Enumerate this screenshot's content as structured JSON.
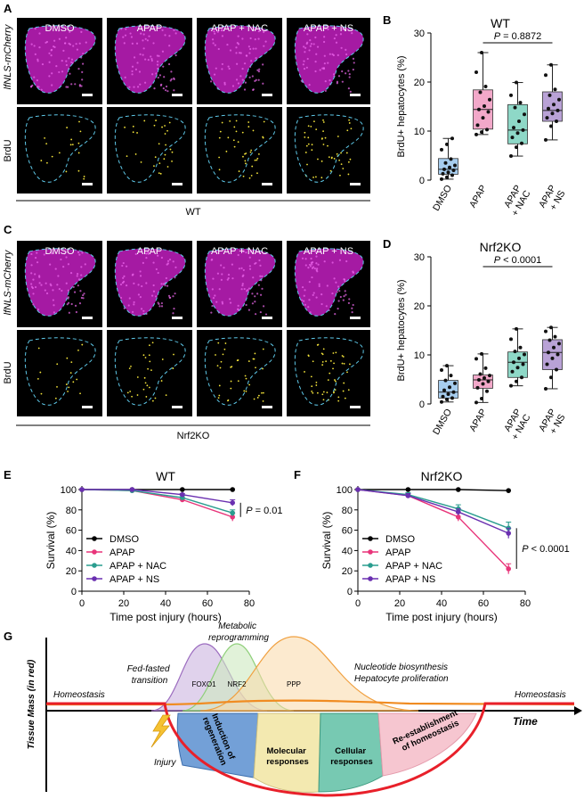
{
  "panels": {
    "A": {
      "letter": "A",
      "conditions": [
        "DMSO",
        "APAP",
        "APAP + NAC",
        "APAP + NS"
      ],
      "row1_label": "lfNLS-mCherry",
      "row2_label": "BrdU",
      "group_label": "WT"
    },
    "C": {
      "letter": "C",
      "conditions": [
        "DMSO",
        "APAP",
        "APAP + NAC",
        "APAP + NS"
      ],
      "row1_label": "lfNLS-mCherry",
      "row2_label": "BrdU",
      "group_label": "Nrf2KO"
    },
    "G": {
      "letter": "G",
      "y_label": "Tissue Mass (in red)",
      "x_label": "Time",
      "labels": {
        "homeostasis_left": "Homeostasis",
        "homeostasis_right": "Homeostasis",
        "injury": "Injury",
        "fed_fasted": [
          "Fed-fasted",
          "transition"
        ],
        "metabolic": [
          "Metabolic",
          "reprogramming"
        ],
        "nucleotide": [
          "Nucleotide biosynthesis",
          "Hepatocyte proliferation"
        ],
        "foxo1": "FOXO1",
        "nrf2": "NRF2",
        "ppp": "PPP",
        "induction": [
          "Induction of",
          "regeneration"
        ],
        "molecular": [
          "Molecular",
          "responses"
        ],
        "cellular": [
          "Cellular",
          "responses"
        ],
        "reestablish": [
          "Re-establishment",
          "of homeostasis"
        ]
      },
      "colors": {
        "foxo1": "#9b6bbf",
        "nrf2": "#8fcf7a",
        "ppp": "#f0a040",
        "induction": "#5b8fd0",
        "molecular": "#f3e9b0",
        "cellular": "#5fc0a4",
        "reestablish": "#f6c6d0",
        "mass": "#e8202a",
        "orange": "#f08c22"
      }
    }
  },
  "chart_data": [
    {
      "panel": "B",
      "type": "box",
      "title": "WT",
      "ylabel": "BrdU+ hepatocytes (%)",
      "ylim": [
        0,
        30
      ],
      "yticks": [
        0,
        10,
        20,
        30
      ],
      "categories": [
        "DMSO",
        "APAP",
        "APAP + NAC",
        "APAP + NS"
      ],
      "colors": [
        "#a7cdee",
        "#f2a8c9",
        "#8ed8c7",
        "#b9a2d6"
      ],
      "boxes": [
        {
          "min": 0.2,
          "q1": 1.2,
          "median": 2.2,
          "q3": 4.4,
          "max": 8.5
        },
        {
          "min": 9.3,
          "q1": 10.4,
          "median": 14.4,
          "q3": 18.4,
          "max": 26.0
        },
        {
          "min": 4.9,
          "q1": 7.4,
          "median": 10.2,
          "q3": 15.4,
          "max": 19.9
        },
        {
          "min": 8.2,
          "q1": 12.0,
          "median": 14.2,
          "q3": 18.0,
          "max": 23.5
        }
      ],
      "points": [
        [
          0.2,
          0.6,
          1.0,
          1.3,
          1.6,
          2.0,
          2.2,
          2.6,
          3.0,
          3.5,
          4.3,
          6.2,
          7.3,
          8.5
        ],
        [
          9.3,
          9.8,
          10.3,
          11.2,
          12.7,
          13.9,
          14.4,
          15.1,
          16.4,
          17.9,
          19.1,
          22.0,
          26.0
        ],
        [
          4.9,
          6.7,
          7.5,
          8.7,
          9.6,
          10.2,
          10.7,
          12.0,
          13.4,
          14.8,
          15.8,
          17.3,
          19.9
        ],
        [
          8.2,
          11.0,
          12.0,
          12.7,
          13.6,
          14.2,
          14.6,
          15.4,
          16.4,
          17.3,
          18.5,
          21.4,
          23.5
        ]
      ],
      "annotation": {
        "text": "P = 0.8872",
        "from": 1,
        "to": 3
      }
    },
    {
      "panel": "D",
      "type": "box",
      "title": "Nrf2KO",
      "ylabel": "BrdU+ hepatocytes (%)",
      "ylim": [
        0,
        30
      ],
      "yticks": [
        0,
        10,
        20,
        30
      ],
      "categories": [
        "DMSO",
        "APAP",
        "APAP + NAC",
        "APAP + NS"
      ],
      "colors": [
        "#a7cdee",
        "#f2a8c9",
        "#8ed8c7",
        "#b9a2d6"
      ],
      "boxes": [
        {
          "min": 0.4,
          "q1": 1.2,
          "median": 2.4,
          "q3": 4.8,
          "max": 7.8
        },
        {
          "min": 0.3,
          "q1": 3.2,
          "median": 4.9,
          "q3": 5.9,
          "max": 10.2
        },
        {
          "min": 3.7,
          "q1": 5.4,
          "median": 8.5,
          "q3": 10.6,
          "max": 15.3
        },
        {
          "min": 3.1,
          "q1": 7.0,
          "median": 10.5,
          "q3": 13.1,
          "max": 15.6
        }
      ],
      "points": [
        [
          0.4,
          0.9,
          1.2,
          1.5,
          2.0,
          2.4,
          2.8,
          3.4,
          4.2,
          4.8,
          5.8,
          6.9,
          7.8
        ],
        [
          0.3,
          1.1,
          2.6,
          3.3,
          4.1,
          4.6,
          4.9,
          5.3,
          5.8,
          6.1,
          7.3,
          9.2,
          10.2
        ],
        [
          3.7,
          4.6,
          5.4,
          6.6,
          7.4,
          8.1,
          8.5,
          9.3,
          10.1,
          10.7,
          11.5,
          13.2,
          15.3
        ],
        [
          3.1,
          5.4,
          7.0,
          8.1,
          9.3,
          10.1,
          10.5,
          11.5,
          12.3,
          13.0,
          13.7,
          14.8,
          15.6
        ]
      ],
      "annotation": {
        "text": "P < 0.0001",
        "from": 1,
        "to": 3
      }
    },
    {
      "panel": "E",
      "type": "line",
      "title": "WT",
      "xlabel": "Time post injury (hours)",
      "ylabel": "Survival (%)",
      "xlim": [
        0,
        80
      ],
      "ylim": [
        0,
        100
      ],
      "xticks": [
        0,
        20,
        40,
        60,
        80
      ],
      "yticks": [
        0,
        20,
        40,
        60,
        80,
        100
      ],
      "x": [
        0,
        24,
        48,
        72
      ],
      "series": [
        {
          "name": "DMSO",
          "color": "#000000",
          "values": [
            100,
            100,
            100,
            100
          ],
          "err": [
            0,
            0,
            0,
            0
          ]
        },
        {
          "name": "APAP",
          "color": "#e8357a",
          "values": [
            100,
            99,
            90,
            73
          ],
          "err": [
            0,
            1,
            2,
            4
          ]
        },
        {
          "name": "APAP + NAC",
          "color": "#2a9d8f",
          "values": [
            100,
            99,
            92,
            77
          ],
          "err": [
            0,
            1,
            2,
            3
          ]
        },
        {
          "name": "APAP + NS",
          "color": "#6a2fb0",
          "values": [
            100,
            100,
            95,
            87
          ],
          "err": [
            0,
            0,
            1,
            3
          ]
        }
      ],
      "annotation": {
        "text": "P = 0.01",
        "y_from": 73,
        "y_to": 87
      }
    },
    {
      "panel": "F",
      "type": "line",
      "title": "Nrf2KO",
      "xlabel": "Time post injury (hours)",
      "ylabel": "Survival (%)",
      "xlim": [
        0,
        80
      ],
      "ylim": [
        0,
        100
      ],
      "xticks": [
        0,
        20,
        40,
        60,
        80
      ],
      "yticks": [
        0,
        20,
        40,
        60,
        80,
        100
      ],
      "x": [
        0,
        24,
        48,
        72
      ],
      "series": [
        {
          "name": "DMSO",
          "color": "#000000",
          "values": [
            100,
            100,
            100,
            99
          ],
          "err": [
            0,
            0,
            0,
            0
          ]
        },
        {
          "name": "APAP",
          "color": "#e8357a",
          "values": [
            100,
            94,
            73,
            22
          ],
          "err": [
            0,
            2,
            4,
            5
          ]
        },
        {
          "name": "APAP + NAC",
          "color": "#2a9d8f",
          "values": [
            100,
            95,
            81,
            62
          ],
          "err": [
            0,
            2,
            4,
            6
          ]
        },
        {
          "name": "APAP + NS",
          "color": "#6a2fb0",
          "values": [
            100,
            94,
            78,
            57
          ],
          "err": [
            0,
            2,
            3,
            5
          ]
        }
      ],
      "annotation": {
        "text": "P < 0.0001",
        "y_from": 22,
        "y_to": 62
      }
    }
  ]
}
